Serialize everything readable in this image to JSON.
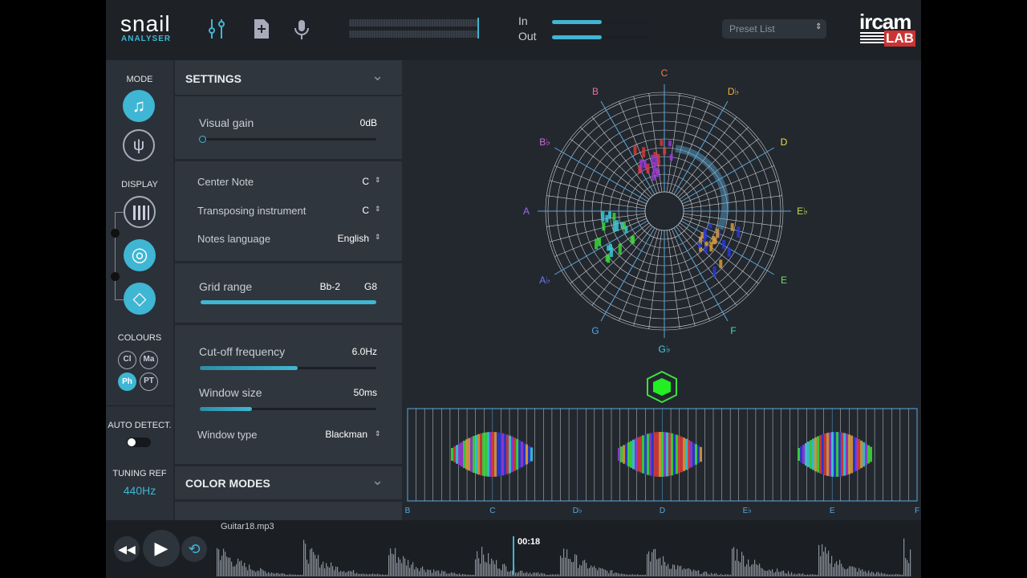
{
  "header": {
    "logo": "snail",
    "logo_sub": "ANALYSER",
    "in": "In",
    "out": "Out",
    "preset": "Preset List",
    "brand": "ircam",
    "brand_sub": "LAB"
  },
  "sidebar": {
    "mode": "MODE",
    "display": "DISPLAY",
    "colours": "COLOURS",
    "colour_buttons": [
      "Cl",
      "Ma",
      "Ph",
      "PT"
    ],
    "auto_detect": "AUTO DETECT.",
    "tuning_ref": "TUNING REF",
    "tuning_value": "440Hz"
  },
  "settings": {
    "title": "SETTINGS",
    "visual_gain": "Visual gain",
    "visual_gain_value": "0dB",
    "center_note": "Center Note",
    "center_note_value": "C",
    "transposing": "Transposing instrument",
    "transposing_value": "C",
    "language": "Notes language",
    "language_value": "English",
    "grid_range": "Grid range",
    "grid_low": "Bb-2",
    "grid_high": "G8",
    "cutoff": "Cut-off frequency",
    "cutoff_value": "6.0Hz",
    "window_size": "Window size",
    "window_size_value": "50ms",
    "window_type": "Window type",
    "window_type_value": "Blackman",
    "color_modes": "COLOR MODES"
  },
  "snail": {
    "notes": [
      {
        "label": "C",
        "color": "#f07a4a"
      },
      {
        "label": "D♭",
        "color": "#f0b23a"
      },
      {
        "label": "D",
        "color": "#e8e040"
      },
      {
        "label": "E♭",
        "color": "#b8e050"
      },
      {
        "label": "E",
        "color": "#6ee06a"
      },
      {
        "label": "F",
        "color": "#50e0a0"
      },
      {
        "label": "G♭",
        "color": "#4ad0e0"
      },
      {
        "label": "G",
        "color": "#4aa8f0"
      },
      {
        "label": "A♭",
        "color": "#6a7af0"
      },
      {
        "label": "A",
        "color": "#9a6af0"
      },
      {
        "label": "B♭",
        "color": "#d06ae0"
      },
      {
        "label": "B",
        "color": "#f06aa8"
      }
    ]
  },
  "strip": {
    "labels": [
      "B",
      "C",
      "D♭",
      "D",
      "E♭",
      "E",
      "F"
    ]
  },
  "player": {
    "file": "Guitar18.mp3",
    "time": "00:18"
  }
}
